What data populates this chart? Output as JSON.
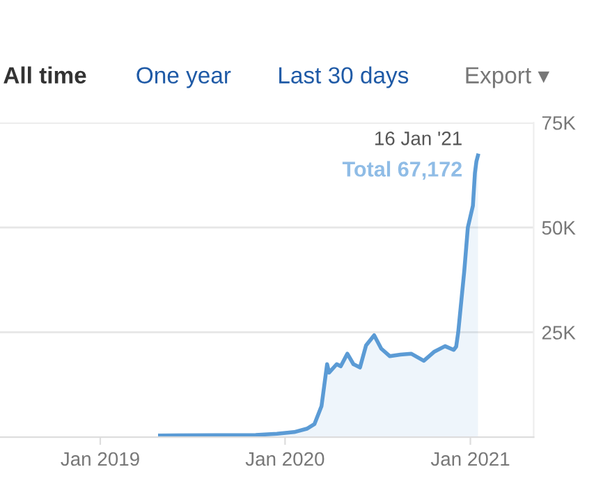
{
  "chart_data": {
    "type": "area",
    "x": [
      "2019-04-29",
      "2019-11-04",
      "2019-12-16",
      "2020-01-19",
      "2020-02-13",
      "2020-02-28",
      "2020-03-13",
      "2020-03-24",
      "2020-03-28",
      "2020-04-12",
      "2020-04-20",
      "2020-05-03",
      "2020-05-15",
      "2020-05-28",
      "2020-06-09",
      "2020-06-25",
      "2020-07-09",
      "2020-07-26",
      "2020-08-16",
      "2020-09-06",
      "2020-10-01",
      "2020-10-22",
      "2020-11-12",
      "2020-11-29",
      "2020-12-04",
      "2020-12-08",
      "2020-12-20",
      "2020-12-27",
      "2021-01-06",
      "2021-01-10",
      "2021-01-13",
      "2021-01-16"
    ],
    "series": [
      {
        "color": "#5b9bd5",
        "values": [
          400,
          500,
          800,
          1200,
          2000,
          3100,
          7400,
          17400,
          15400,
          17400,
          16900,
          19900,
          17400,
          16600,
          21900,
          24300,
          21100,
          19300,
          19700,
          19900,
          18200,
          20400,
          21700,
          20800,
          21600,
          25000,
          39700,
          50000,
          55200,
          63000,
          65800,
          67172
        ]
      }
    ],
    "xlim": [
      "2018-06-17",
      "2021-05-06"
    ],
    "xticks": [
      {
        "value": "2019-01-01",
        "label": "Jan 2019"
      },
      {
        "value": "2020-01-01",
        "label": "Jan 2020"
      },
      {
        "value": "2021-01-01",
        "label": "Jan 2021"
      }
    ],
    "ylim": [
      0,
      75000
    ],
    "yticks": [
      {
        "value": 25000,
        "label": "25K"
      },
      {
        "value": 50000,
        "label": "50K"
      },
      {
        "value": 75000,
        "label": "75K"
      }
    ],
    "grid": "y",
    "annotations": [
      "All time",
      "One year",
      "Last 30 days",
      "Export ▾",
      {
        "text": "16 Jan '21",
        "x": "2021-01-16",
        "y": 67172
      },
      {
        "text": "Total 67,172",
        "x": "2021-01-16",
        "y": 67172
      }
    ]
  }
}
